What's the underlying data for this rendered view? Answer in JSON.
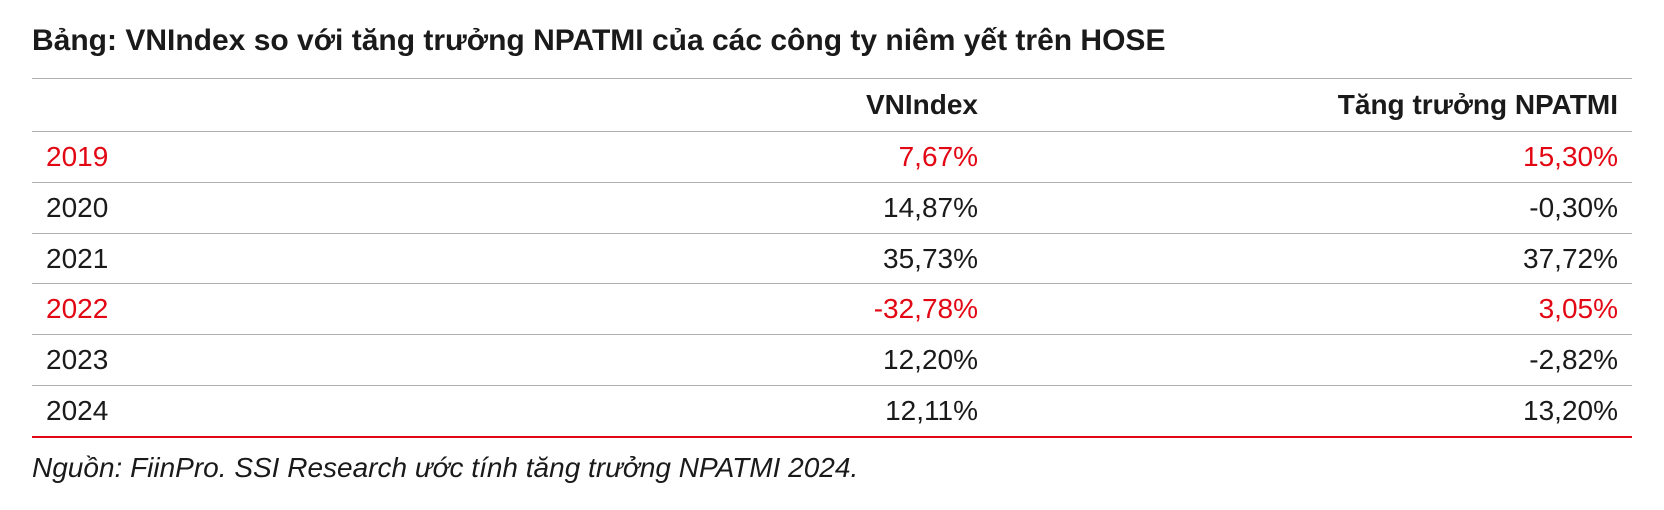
{
  "title": "Bảng: VNIndex so với tăng trưởng NPATMI của các công ty niêm yết trên HOSE",
  "table": {
    "type": "table",
    "columns": [
      "",
      "VNIndex",
      "Tăng trưởng NPATMI"
    ],
    "column_align": [
      "left",
      "right",
      "right"
    ],
    "column_widths_pct": [
      30,
      30,
      40
    ],
    "header_fontsize": 28,
    "header_weight": "bold",
    "body_fontsize": 28,
    "border_color": "#b0b0b0",
    "bottom_rule_color": "#e30613",
    "highlight_color": "#e30613",
    "text_color": "#1a1a1a",
    "background_color": "#ffffff",
    "rows": [
      {
        "year": "2019",
        "vnindex": "7,67%",
        "npatmi": "15,30%",
        "highlight": true
      },
      {
        "year": "2020",
        "vnindex": "14,87%",
        "npatmi": "-0,30%",
        "highlight": false
      },
      {
        "year": "2021",
        "vnindex": "35,73%",
        "npatmi": "37,72%",
        "highlight": false
      },
      {
        "year": "2022",
        "vnindex": "-32,78%",
        "npatmi": "3,05%",
        "highlight": true
      },
      {
        "year": "2023",
        "vnindex": "12,20%",
        "npatmi": "-2,82%",
        "highlight": false
      },
      {
        "year": "2024",
        "vnindex": "12,11%",
        "npatmi": "13,20%",
        "highlight": false
      }
    ]
  },
  "source": "Nguồn: FiinPro. SSI Research ước tính tăng trưởng NPATMI 2024."
}
